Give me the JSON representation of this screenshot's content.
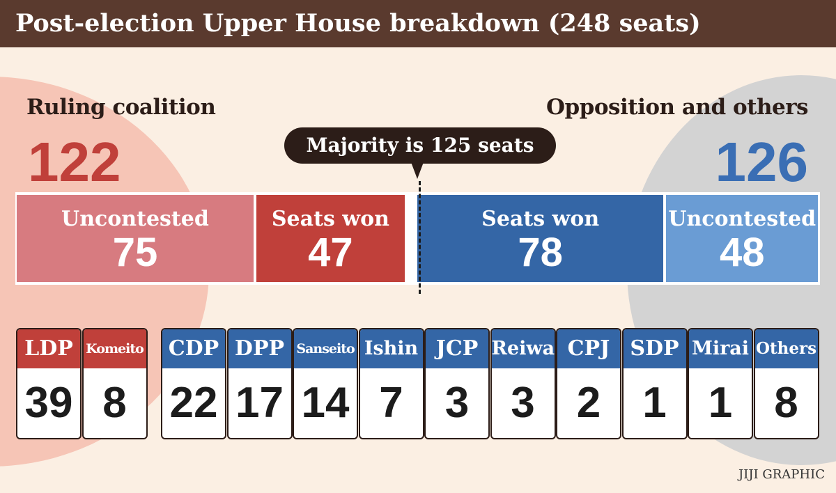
{
  "title": "Post-election Upper House breakdown (248 seats)",
  "ruling": {
    "label": "Ruling coalition",
    "total": "122"
  },
  "opposition": {
    "label": "Opposition and others",
    "total": "126"
  },
  "majority_note": "Majority is 125 seats",
  "credit": "JIJI GRAPHIC",
  "colors": {
    "ruling_dark": "#c0403a",
    "ruling_light": "#d77b80",
    "opposition_dark": "#3466a6",
    "opposition_light": "#6a9cd4",
    "header_bg": "#5a3a2e"
  },
  "chart_data": [
    {
      "type": "bar",
      "stacked": true,
      "orientation": "horizontal",
      "total_seats": 248,
      "majority": 125,
      "segments": [
        {
          "group": "Ruling coalition",
          "label": "Uncontested",
          "value": 75,
          "display": "75",
          "color": "#d77b80"
        },
        {
          "group": "Ruling coalition",
          "label": "Seats won",
          "value": 47,
          "display": "47",
          "color": "#c0403a"
        },
        {
          "group": "Opposition and others",
          "label": "Seats won",
          "value": 78,
          "display": "78",
          "color": "#3466a6"
        },
        {
          "group": "Opposition and others",
          "label": "Uncontested",
          "value": 48,
          "display": "48",
          "color": "#6a9cd4"
        }
      ]
    },
    {
      "type": "table",
      "parties": [
        {
          "name": "LDP",
          "seats": "39",
          "group": "ruling",
          "color": "#c0403a"
        },
        {
          "name": "Komeito",
          "seats": "8",
          "group": "ruling",
          "color": "#c0403a"
        },
        {
          "name": "CDP",
          "seats": "22",
          "group": "opposition",
          "color": "#3466a6"
        },
        {
          "name": "DPP",
          "seats": "17",
          "group": "opposition",
          "color": "#3466a6"
        },
        {
          "name": "Sanseito",
          "seats": "14",
          "group": "opposition",
          "color": "#3466a6"
        },
        {
          "name": "Ishin",
          "seats": "7",
          "group": "opposition",
          "color": "#3466a6"
        },
        {
          "name": "JCP",
          "seats": "3",
          "group": "opposition",
          "color": "#3466a6"
        },
        {
          "name": "Reiwa",
          "seats": "3",
          "group": "opposition",
          "color": "#3466a6"
        },
        {
          "name": "CPJ",
          "seats": "2",
          "group": "opposition",
          "color": "#3466a6"
        },
        {
          "name": "SDP",
          "seats": "1",
          "group": "opposition",
          "color": "#3466a6"
        },
        {
          "name": "Mirai",
          "seats": "1",
          "group": "opposition",
          "color": "#3466a6"
        },
        {
          "name": "Others",
          "seats": "8",
          "group": "opposition",
          "color": "#3466a6"
        }
      ]
    }
  ]
}
